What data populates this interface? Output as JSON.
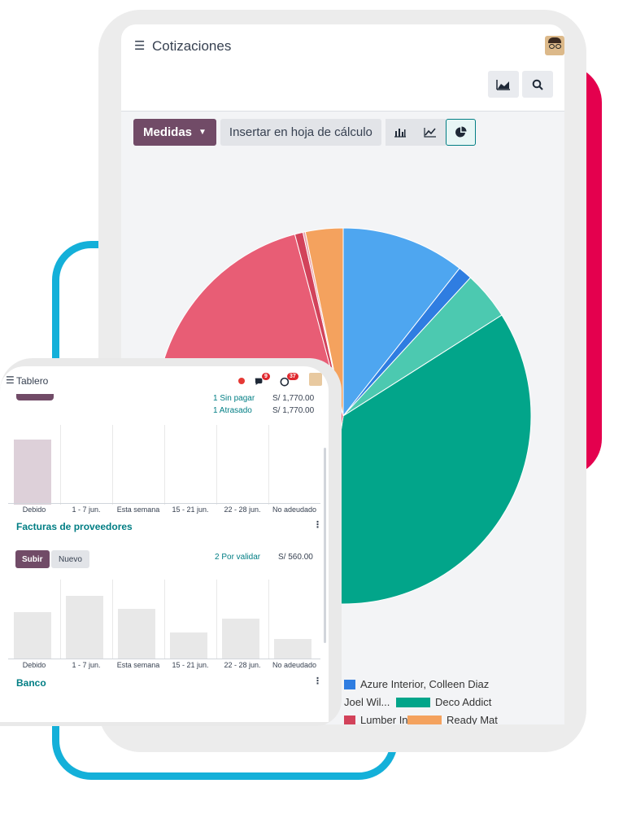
{
  "colors": {
    "brand_purple": "#714b67",
    "teal": "#017e84",
    "badge_red": "#e0282e",
    "deco_red": "#e4004e",
    "deco_blue": "#14b0d9"
  },
  "quotes_app": {
    "title": "Cotizaciones",
    "menu_icon": "hamburger-icon",
    "chat_badge": "9",
    "activity_badge": "37",
    "measures_label": "Medidas",
    "insert_label": "Insertar en hoja de cálculo",
    "view_icons": [
      "bar-chart-icon",
      "line-chart-icon",
      "pie-chart-icon"
    ],
    "active_view": "pie-chart-icon",
    "top_right_icons": [
      "area-chart-icon",
      "search-icon"
    ]
  },
  "chart_data": {
    "type": "pie",
    "series": [
      {
        "name": "",
        "value": 10.5,
        "color": "#4ea6f0"
      },
      {
        "name": "Azure Interior, Colleen Diaz",
        "value": 1.2,
        "color": "#2f7de1"
      },
      {
        "name": "",
        "value": 4.1,
        "color": "#4cc9b0"
      },
      {
        "name": "Deco Addict",
        "value": 36.0,
        "color": "#02a58a"
      },
      {
        "name": "",
        "value": 42.9,
        "color": "#e85d75"
      },
      {
        "name": "Lumber Inc",
        "value": 0.7,
        "color": "#d2425a"
      },
      {
        "name": "",
        "value": 0.2,
        "color": "#e8a0a8"
      },
      {
        "name": "Ready Mat",
        "value": 3.2,
        "color": "#f4a25e"
      }
    ],
    "legend": [
      {
        "name": "Azure Interior, Colleen Diaz",
        "color": "#2f7de1"
      },
      {
        "name": "Joel Wil...",
        "color": ""
      },
      {
        "name": "Deco Addict",
        "color": "#02a58a"
      },
      {
        "name": "Lumber Inc",
        "color": "#d2425a"
      },
      {
        "name": "Ready Mat",
        "color": "#f4a25e"
      }
    ]
  },
  "dashboard_app": {
    "title": "Tablero",
    "chat_badge": "9",
    "activity_badge": "37",
    "sales_meta": [
      {
        "label": "1 Sin pagar",
        "value": "S/ 1,770.00"
      },
      {
        "label": "1 Atrasado",
        "value": "S/ 1,770.00"
      }
    ],
    "bar_labels": [
      "Debido",
      "1 - 7 jun.",
      "Esta semana",
      "15 - 21 jun.",
      "22 - 28 jun.",
      "No adeudado"
    ],
    "sales_bars": [
      1.0,
      0,
      0,
      0,
      0,
      0
    ],
    "vendor_section": {
      "title": "Facturas de proveedores",
      "upload_label": "Subir",
      "new_label": "Nuevo",
      "to_validate": "2 Por validar",
      "amount": "S/ 560.00",
      "bars": [
        0.72,
        0.97,
        0.77,
        0.41,
        0.62,
        0.31
      ]
    },
    "bank_section": {
      "title": "Banco"
    }
  }
}
